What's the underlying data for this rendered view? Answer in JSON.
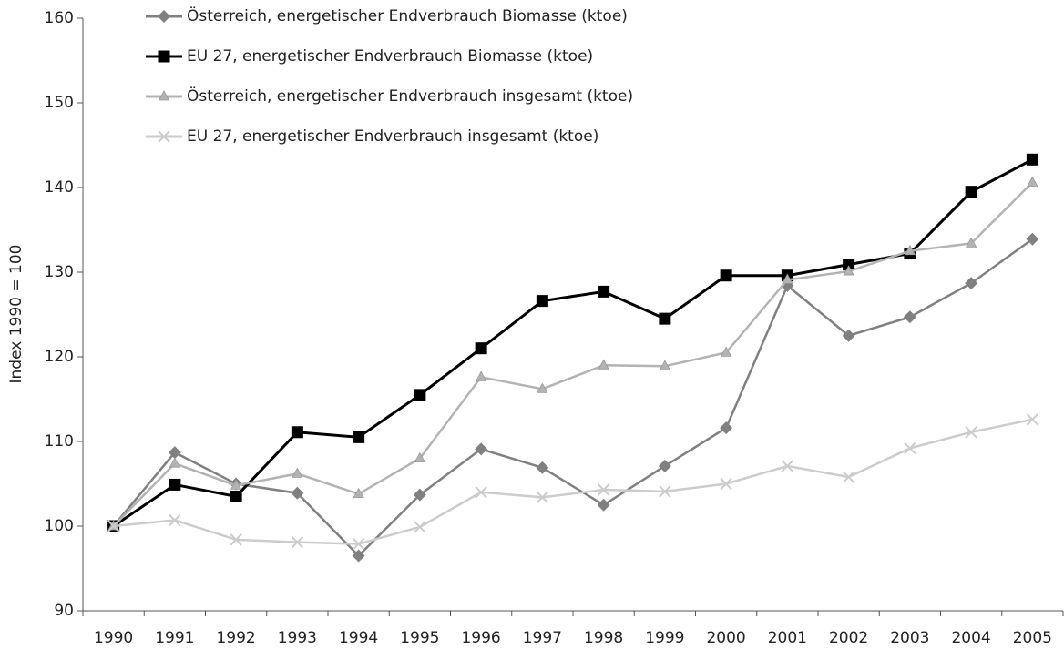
{
  "chart_data": {
    "type": "line",
    "y_label": "Index 1990 = 100",
    "categories": [
      "1990",
      "1991",
      "1992",
      "1993",
      "1994",
      "1995",
      "1996",
      "1997",
      "1998",
      "1999",
      "2000",
      "2001",
      "2002",
      "2003",
      "2004",
      "2005"
    ],
    "ylim": [
      90,
      160
    ],
    "yticks": [
      90,
      100,
      110,
      120,
      130,
      140,
      150,
      160
    ],
    "legend": "top-left",
    "series": [
      {
        "name": "Österreich, energetischer Endverbrauch Biomasse (ktoe)",
        "color": "#808080",
        "marker": "diamond",
        "values": [
          100,
          108.7,
          105,
          103.9,
          96.5,
          103.7,
          109.1,
          106.9,
          102.5,
          107.1,
          111.6,
          128.4,
          122.5,
          124.7,
          128.7,
          133.9
        ]
      },
      {
        "name": "EU 27, energetischer Endverbrauch Biomasse (ktoe)",
        "color": "#000000",
        "marker": "square",
        "values": [
          100,
          104.9,
          103.5,
          111.1,
          110.5,
          115.5,
          121,
          126.6,
          127.7,
          124.5,
          129.6,
          129.6,
          130.9,
          132.2,
          139.5,
          143.3
        ]
      },
      {
        "name": "Österreich, energetischer Endverbrauch insgesamt (ktoe)",
        "color": "#b3b3b3",
        "marker": "triangle",
        "values": [
          100,
          107.4,
          104.8,
          106.2,
          103.8,
          108,
          117.6,
          116.2,
          119,
          118.9,
          120.5,
          129.1,
          130.1,
          132.5,
          133.4,
          140.6
        ]
      },
      {
        "name": "EU 27, energetischer Endverbrauch insgesamt (ktoe)",
        "color": "#cccccc",
        "marker": "x",
        "values": [
          100,
          100.7,
          98.4,
          98.1,
          97.9,
          99.9,
          104,
          103.4,
          104.3,
          104.1,
          105,
          107.1,
          105.8,
          109.2,
          111.1,
          112.6
        ]
      }
    ]
  }
}
